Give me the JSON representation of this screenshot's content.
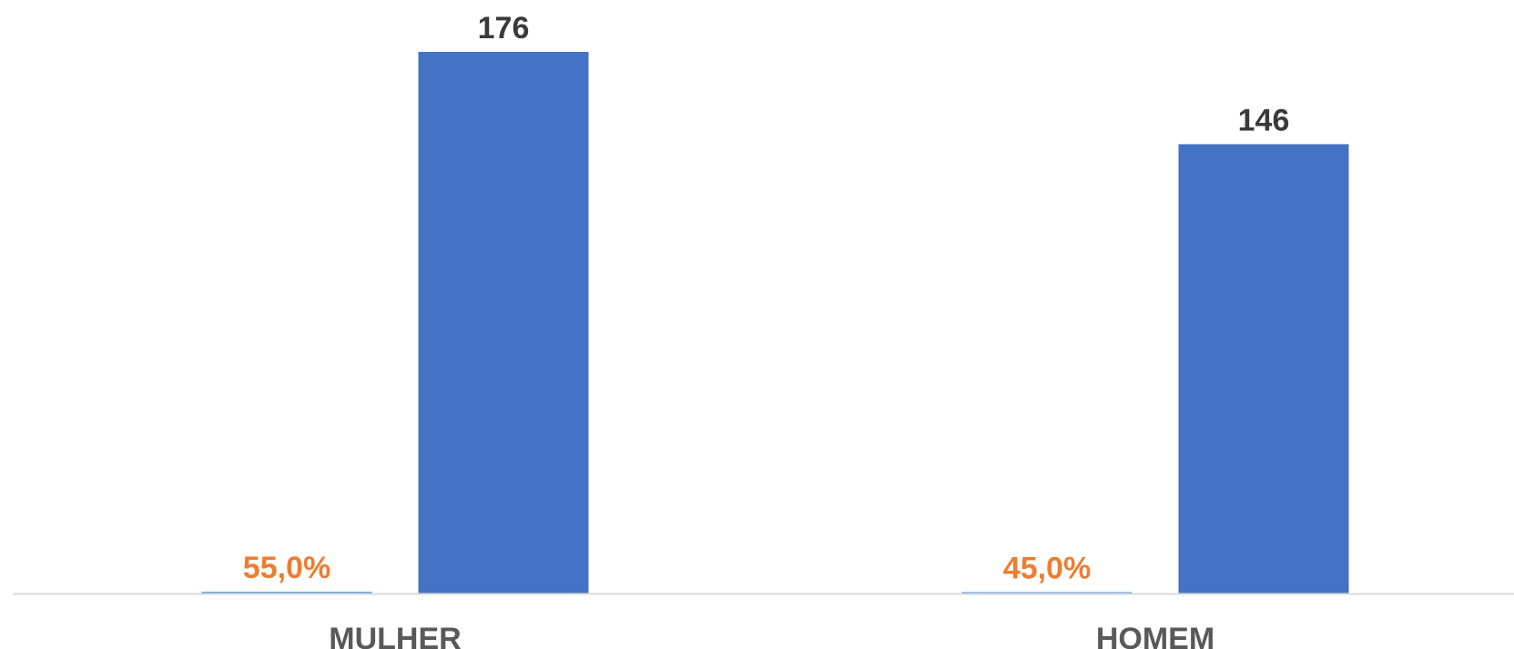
{
  "chart_data": {
    "type": "bar",
    "title": "",
    "xlabel": "",
    "ylabel": "",
    "categories": [
      "MULHER",
      "HOMEM"
    ],
    "series": [
      {
        "values": [
          0.55,
          0.45
        ],
        "labels": [
          "55,0%",
          "45,0%"
        ],
        "color": "#5b9bd5"
      },
      {
        "values": [
          176,
          146
        ],
        "labels": [
          "176",
          "146"
        ],
        "color": "#4472c4"
      }
    ],
    "ylim": [
      0,
      176
    ],
    "grid": false,
    "legend": "none",
    "colors": {
      "count_bar": "#4472c4",
      "percent_label": "#ed7d31",
      "value_label": "#3a3a3a",
      "category_label": "#595959",
      "axis_line": "#d9d9d9"
    }
  }
}
